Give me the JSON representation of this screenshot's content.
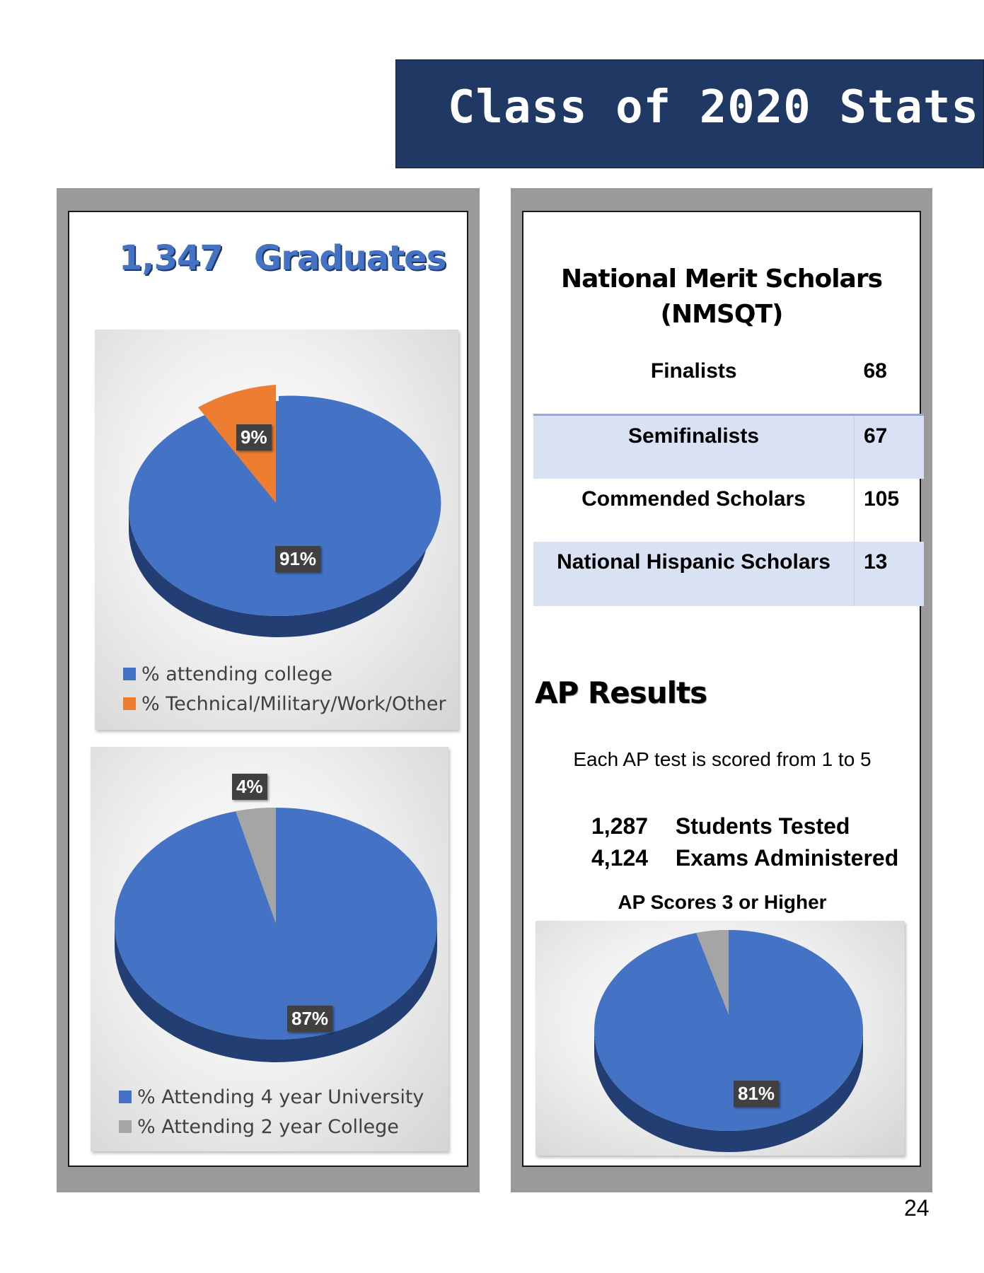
{
  "header": {
    "title": "Class of 2020 Stats"
  },
  "graduates": {
    "count": "1,347",
    "label": "Graduates"
  },
  "chart_data": [
    {
      "type": "pie",
      "categories": [
        "% attending college",
        "% Technical/Military/Work/Other"
      ],
      "values": [
        91,
        9
      ],
      "data_labels": [
        "91%",
        "9%"
      ],
      "colors": [
        "#4472c4",
        "#ed7d31"
      ],
      "legend": "bottom"
    },
    {
      "type": "pie",
      "categories": [
        "% Attending 4 year University",
        "% Attending 2 year College"
      ],
      "values": [
        87,
        4
      ],
      "data_labels": [
        "87%",
        "4%"
      ],
      "colors": [
        "#4472c4",
        "#a5a5a5"
      ],
      "legend": "bottom"
    },
    {
      "type": "pie",
      "title": "AP Scores 3 or Higher",
      "values": [
        81
      ],
      "data_labels": [
        "81%"
      ],
      "colors": [
        "#4472c4",
        "#a5a5a5"
      ]
    }
  ],
  "nmsqt": {
    "title_line1": "National Merit Scholars",
    "title_line2": "(NMSQT)",
    "rows": [
      {
        "label": "Finalists",
        "value": "68"
      },
      {
        "label": "Semifinalists",
        "value": "67"
      },
      {
        "label": "Commended Scholars",
        "value": "105"
      },
      {
        "label": "National Hispanic Scholars",
        "value": "13"
      }
    ]
  },
  "ap": {
    "heading": "AP Results",
    "note": "Each AP test is scored from 1 to 5",
    "students_num": "1,287",
    "students_label": "Students Tested",
    "exams_num": "4,124",
    "exams_label": "Exams Administered",
    "chart_title": "AP Scores 3 or Higher"
  },
  "page_number": "24"
}
